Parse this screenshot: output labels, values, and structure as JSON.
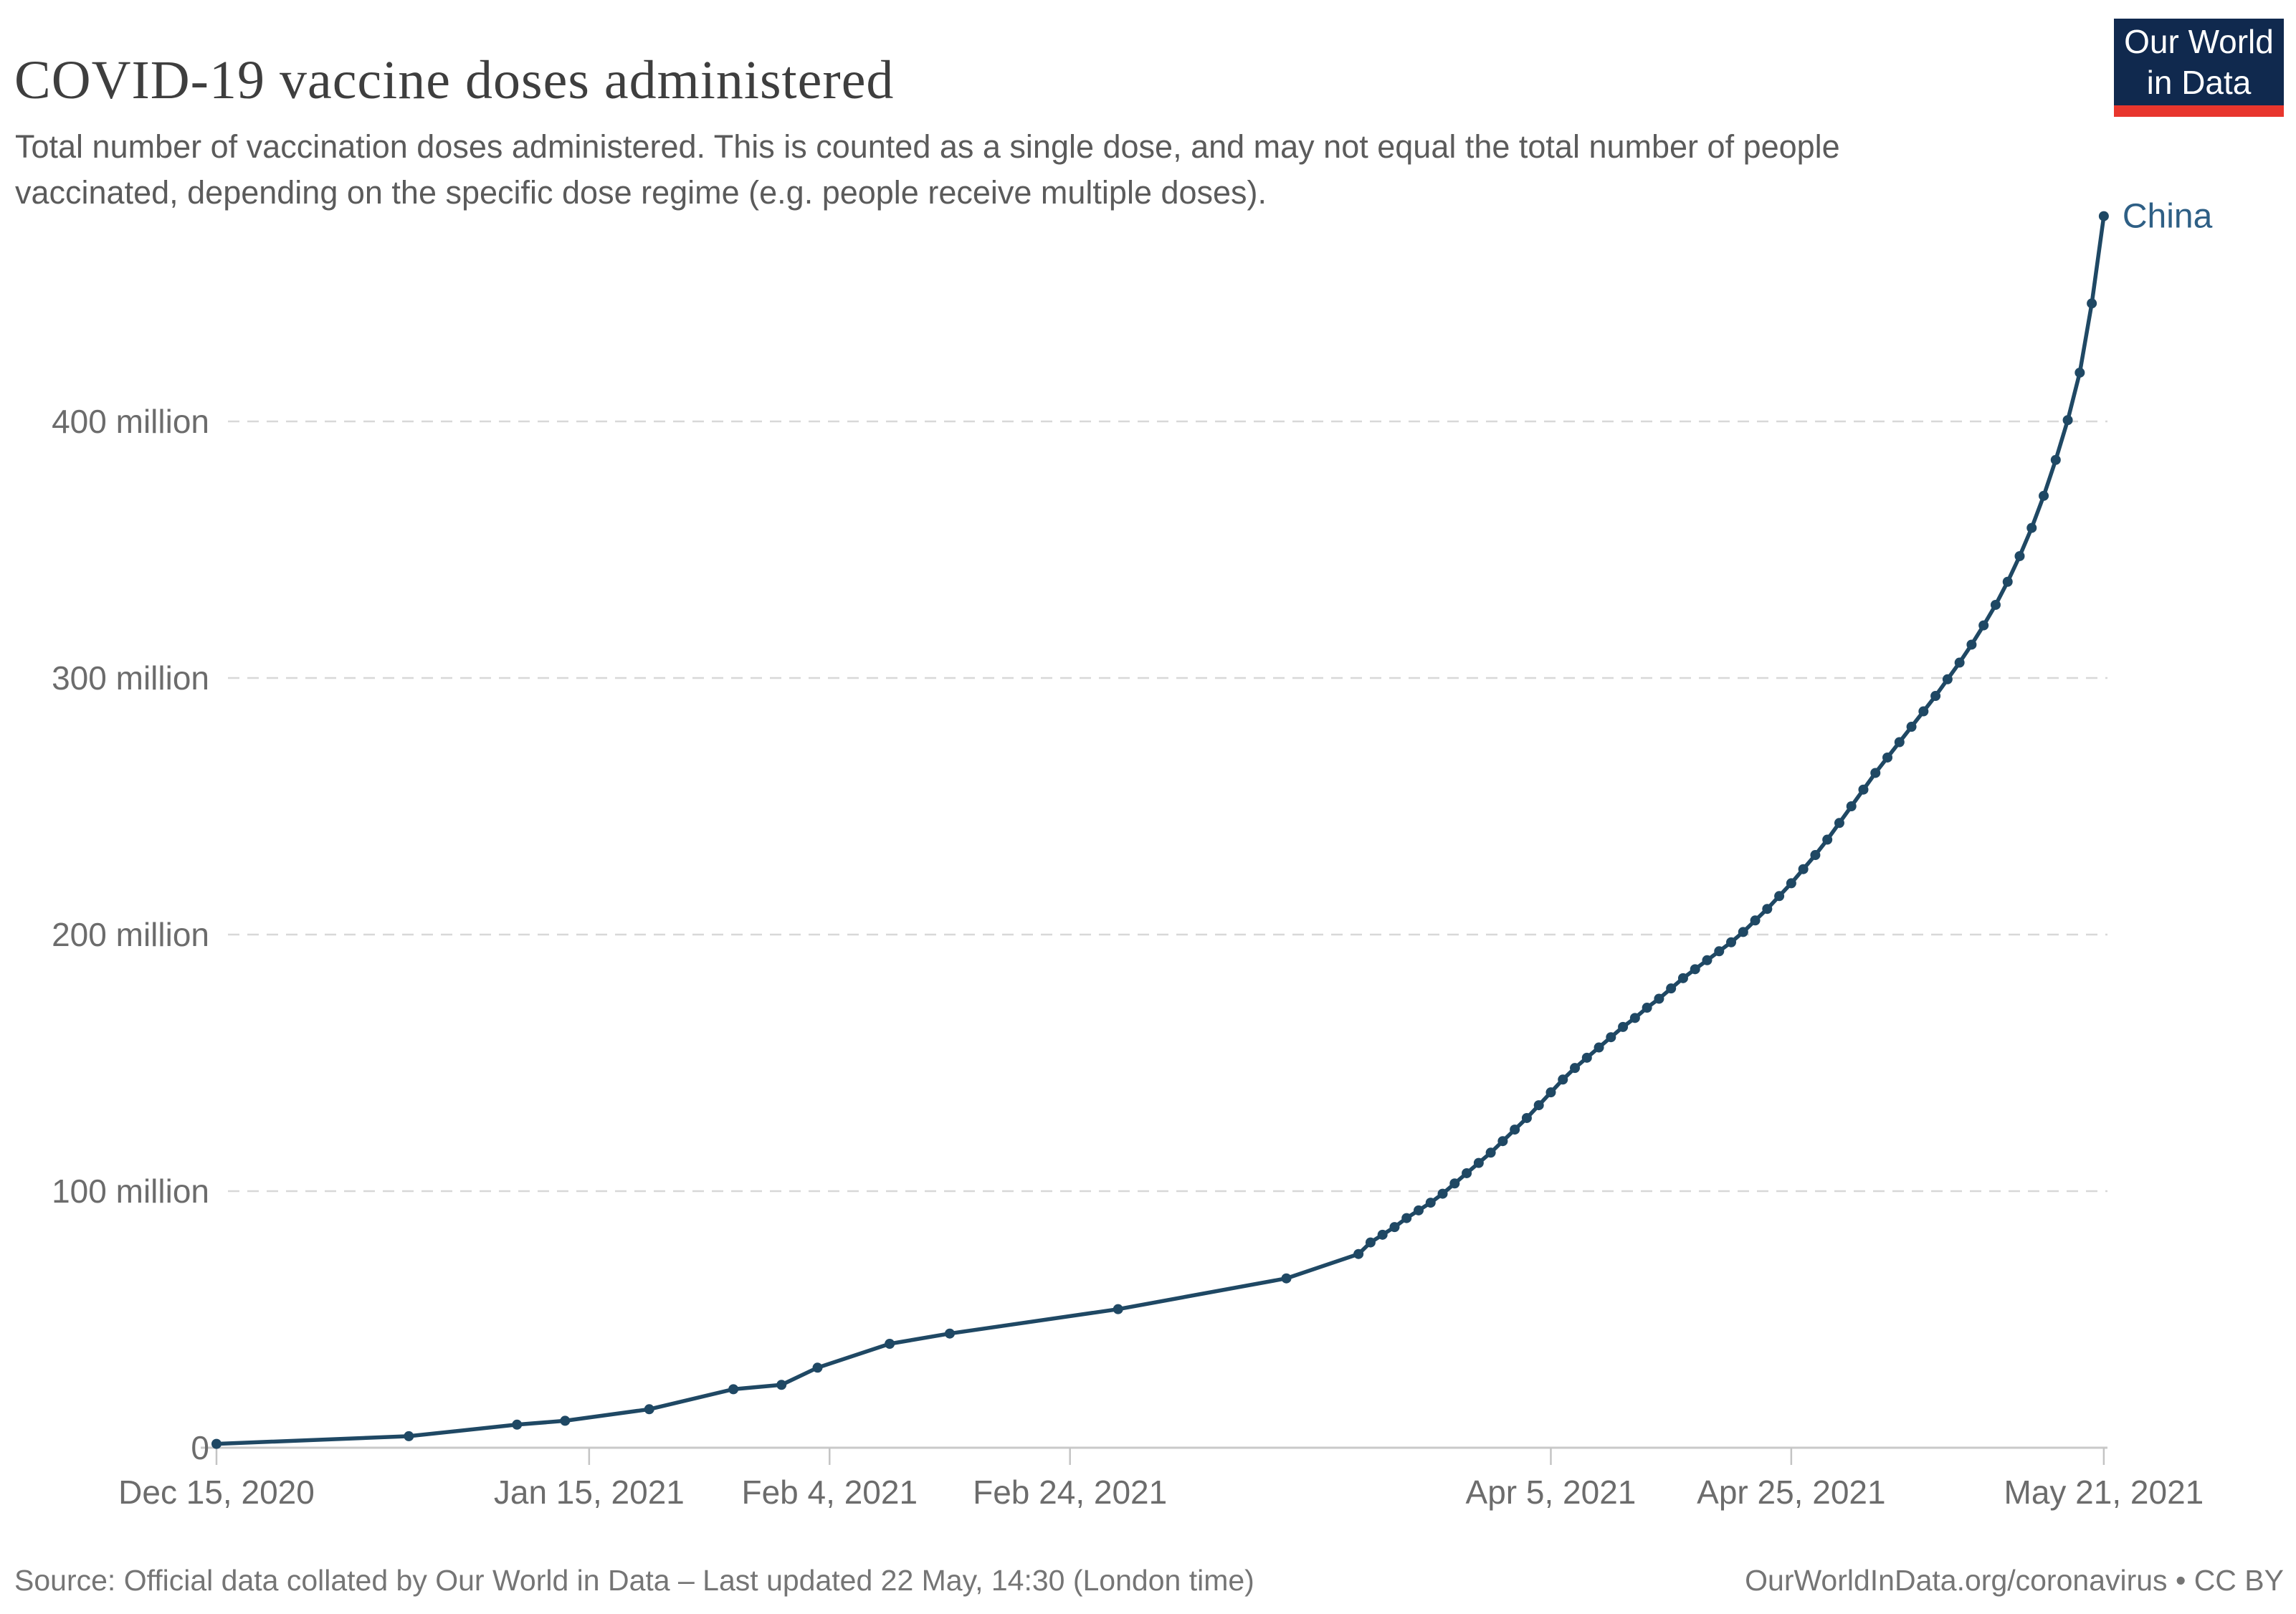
{
  "header": {
    "title": "COVID-19 vaccine doses administered",
    "subtitle": "Total number of vaccination doses administered. This is counted as a single dose, and may not equal the total number of people vaccinated, depending on the specific dose regime (e.g. people receive multiple doses)."
  },
  "logo": {
    "line1": "Our World",
    "line2": "in Data",
    "bg_color": "#10294e",
    "bar_color": "#e8362d",
    "text_color": "#ffffff"
  },
  "footer": {
    "source": "Source: Official data collated by Our World in Data – Last updated 22 May, 14:30 (London time)",
    "link": "OurWorldInData.org/coronavirus • CC BY"
  },
  "colors": {
    "line": "#1f4864",
    "series_label": "#2e5f85",
    "axis_text": "#6c6c6c",
    "gridline": "#d8d8d8",
    "baseline": "#c9c9c9",
    "tick": "#c4c4c4"
  },
  "chart_data": {
    "type": "line",
    "title": "COVID-19 vaccine doses administered",
    "unit": "doses (millions)",
    "grid": "dashed horizontal gridlines",
    "legend_position": "label at end of line",
    "x_range": [
      "2020-12-15",
      "2021-05-21"
    ],
    "ylim": [
      0,
      500
    ],
    "y_ticks": [
      {
        "value": 0,
        "label": "0"
      },
      {
        "value": 100,
        "label": "100 million"
      },
      {
        "value": 200,
        "label": "200 million"
      },
      {
        "value": 300,
        "label": "300 million"
      },
      {
        "value": 400,
        "label": "400 million"
      }
    ],
    "x_ticks": [
      {
        "date": "2020-12-15",
        "label": "Dec 15, 2020"
      },
      {
        "date": "2021-01-15",
        "label": "Jan 15, 2021"
      },
      {
        "date": "2021-02-04",
        "label": "Feb 4, 2021"
      },
      {
        "date": "2021-02-24",
        "label": "Feb 24, 2021"
      },
      {
        "date": "2021-04-05",
        "label": "Apr 5, 2021"
      },
      {
        "date": "2021-04-25",
        "label": "Apr 25, 2021"
      },
      {
        "date": "2021-05-21",
        "label": "May 21, 2021"
      }
    ],
    "series": [
      {
        "name": "China",
        "color": "#1f4864",
        "points": [
          [
            "2020-12-15",
            1.5
          ],
          [
            "2020-12-31",
            4.5
          ],
          [
            "2021-01-09",
            9
          ],
          [
            "2021-01-13",
            10.5
          ],
          [
            "2021-01-20",
            15
          ],
          [
            "2021-01-27",
            22.8
          ],
          [
            "2021-01-31",
            24.5
          ],
          [
            "2021-02-03",
            31.2
          ],
          [
            "2021-02-09",
            40.5
          ],
          [
            "2021-02-14",
            44.5
          ],
          [
            "2021-02-28",
            54
          ],
          [
            "2021-03-14",
            66
          ],
          [
            "2021-03-20",
            75.5
          ],
          [
            "2021-03-21",
            80
          ],
          [
            "2021-03-22",
            83
          ],
          [
            "2021-03-23",
            86
          ],
          [
            "2021-03-24",
            89.5
          ],
          [
            "2021-03-25",
            92.5
          ],
          [
            "2021-03-26",
            95.5
          ],
          [
            "2021-03-27",
            99
          ],
          [
            "2021-03-28",
            103
          ],
          [
            "2021-03-29",
            107
          ],
          [
            "2021-03-30",
            111
          ],
          [
            "2021-03-31",
            115
          ],
          [
            "2021-04-01",
            119.5
          ],
          [
            "2021-04-02",
            124
          ],
          [
            "2021-04-03",
            128.5
          ],
          [
            "2021-04-04",
            133.5
          ],
          [
            "2021-04-05",
            138.5
          ],
          [
            "2021-04-06",
            143.5
          ],
          [
            "2021-04-07",
            148
          ],
          [
            "2021-04-08",
            152
          ],
          [
            "2021-04-09",
            156
          ],
          [
            "2021-04-10",
            160
          ],
          [
            "2021-04-11",
            164
          ],
          [
            "2021-04-12",
            167.5
          ],
          [
            "2021-04-13",
            171.5
          ],
          [
            "2021-04-14",
            175
          ],
          [
            "2021-04-15",
            179
          ],
          [
            "2021-04-16",
            183
          ],
          [
            "2021-04-17",
            186.5
          ],
          [
            "2021-04-18",
            190
          ],
          [
            "2021-04-19",
            193.5
          ],
          [
            "2021-04-20",
            197
          ],
          [
            "2021-04-21",
            201
          ],
          [
            "2021-04-22",
            205.5
          ],
          [
            "2021-04-23",
            210
          ],
          [
            "2021-04-24",
            215
          ],
          [
            "2021-04-25",
            220
          ],
          [
            "2021-04-26",
            225.5
          ],
          [
            "2021-04-27",
            231
          ],
          [
            "2021-04-28",
            237
          ],
          [
            "2021-04-29",
            243.5
          ],
          [
            "2021-04-30",
            250
          ],
          [
            "2021-05-01",
            256.5
          ],
          [
            "2021-05-02",
            263
          ],
          [
            "2021-05-03",
            269
          ],
          [
            "2021-05-04",
            275
          ],
          [
            "2021-05-05",
            281
          ],
          [
            "2021-05-06",
            287
          ],
          [
            "2021-05-07",
            293
          ],
          [
            "2021-05-08",
            299.5
          ],
          [
            "2021-05-09",
            306
          ],
          [
            "2021-05-10",
            313
          ],
          [
            "2021-05-11",
            320.5
          ],
          [
            "2021-05-12",
            328.5
          ],
          [
            "2021-05-13",
            337.5
          ],
          [
            "2021-05-14",
            347.5
          ],
          [
            "2021-05-15",
            358.5
          ],
          [
            "2021-05-16",
            371
          ],
          [
            "2021-05-17",
            385
          ],
          [
            "2021-05-18",
            400.5
          ],
          [
            "2021-05-19",
            419
          ],
          [
            "2021-05-20",
            446
          ],
          [
            "2021-05-21",
            480
          ]
        ]
      }
    ]
  }
}
